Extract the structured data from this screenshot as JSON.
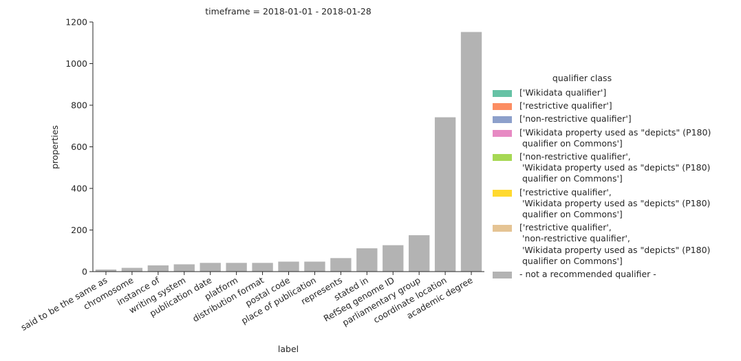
{
  "chart_data": {
    "type": "bar",
    "title": "timeframe = 2018-01-01 - 2018-01-28",
    "xlabel": "label",
    "ylabel": "properties",
    "ylim": [
      0,
      1200
    ],
    "yticks": [
      0,
      200,
      400,
      600,
      800,
      1000,
      1200
    ],
    "grid": false,
    "categories": [
      "said to be the same as",
      "chromosome",
      "instance of",
      "writing system",
      "publication date",
      "platform",
      "distribution format",
      "postal code",
      "place of publication",
      "represents",
      "stated in",
      "RefSeq genome ID",
      "parliamentary group",
      "coordinate location",
      "academic degree"
    ],
    "series": [
      {
        "name": "- not a recommended qualifier -",
        "color": "#b3b3b3",
        "values": [
          10,
          18,
          30,
          35,
          42,
          42,
          42,
          48,
          48,
          65,
          112,
          127,
          175,
          742,
          1152
        ]
      }
    ],
    "legend": {
      "title": "qualifier class",
      "placement": "right",
      "entries": [
        {
          "label": "['Wikidata qualifier']",
          "color": "#66c2a5"
        },
        {
          "label": "['restrictive qualifier']",
          "color": "#fc8d62"
        },
        {
          "label": "['non-restrictive qualifier']",
          "color": "#8da0cb"
        },
        {
          "label": "['Wikidata property used as \"depicts\" (P180)\n qualifier on Commons']",
          "color": "#e78ac3"
        },
        {
          "label": "['non-restrictive qualifier',\n 'Wikidata property used as \"depicts\" (P180)\n qualifier on Commons']",
          "color": "#a6d854"
        },
        {
          "label": "['restrictive qualifier',\n 'Wikidata property used as \"depicts\" (P180)\n qualifier on Commons']",
          "color": "#ffd92f"
        },
        {
          "label": "['restrictive qualifier',\n 'non-restrictive qualifier',\n 'Wikidata property used as \"depicts\" (P180)\n qualifier on Commons']",
          "color": "#e5c494"
        },
        {
          "label": "- not a recommended qualifier -",
          "color": "#b3b3b3"
        }
      ]
    }
  }
}
